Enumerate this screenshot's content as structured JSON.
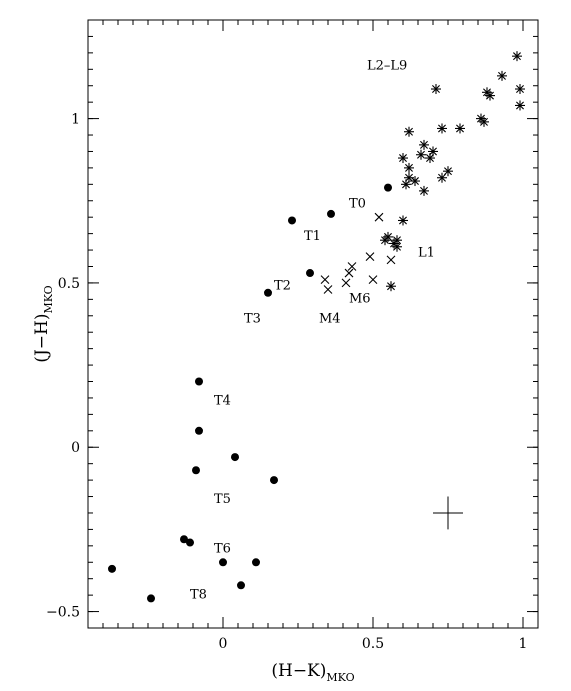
{
  "chart_data": {
    "type": "scatter",
    "xlabel_main": "(H−K)",
    "xlabel_sub": "MKO",
    "ylabel_main": "(J−H)",
    "ylabel_sub": "MKO",
    "xlim": [
      -0.45,
      1.05
    ],
    "ylim": [
      -0.55,
      1.3
    ],
    "x_ticks": [
      0,
      0.5,
      1
    ],
    "x_tick_labels": [
      "0",
      "0.5",
      "1"
    ],
    "y_ticks": [
      -0.5,
      0,
      0.5,
      1
    ],
    "y_tick_labels": [
      "−0.5",
      "0",
      "0.5",
      "1"
    ],
    "grid": false,
    "series": [
      {
        "marker": "filled-circle",
        "points": [
          [
            0.55,
            0.79
          ],
          [
            0.36,
            0.71
          ],
          [
            0.23,
            0.69
          ],
          [
            0.29,
            0.53
          ],
          [
            0.15,
            0.47
          ],
          [
            -0.08,
            0.2
          ],
          [
            -0.08,
            0.05
          ],
          [
            0.04,
            -0.03
          ],
          [
            -0.09,
            -0.07
          ],
          [
            0.17,
            -0.1
          ],
          [
            -0.13,
            -0.28
          ],
          [
            -0.11,
            -0.29
          ],
          [
            0.0,
            -0.35
          ],
          [
            0.11,
            -0.35
          ],
          [
            -0.37,
            -0.37
          ],
          [
            0.06,
            -0.42
          ],
          [
            -0.24,
            -0.46
          ]
        ]
      },
      {
        "marker": "cross",
        "points": [
          [
            0.52,
            0.7
          ],
          [
            0.34,
            0.51
          ],
          [
            0.35,
            0.48
          ],
          [
            0.42,
            0.53
          ],
          [
            0.43,
            0.55
          ],
          [
            0.41,
            0.5
          ],
          [
            0.5,
            0.51
          ],
          [
            0.49,
            0.58
          ],
          [
            0.56,
            0.57
          ]
        ]
      },
      {
        "marker": "asterisk",
        "points": [
          [
            0.98,
            1.19
          ],
          [
            0.93,
            1.13
          ],
          [
            0.71,
            1.09
          ],
          [
            0.88,
            1.08
          ],
          [
            0.99,
            1.09
          ],
          [
            0.89,
            1.07
          ],
          [
            0.99,
            1.04
          ],
          [
            0.86,
            1.0
          ],
          [
            0.87,
            0.99
          ],
          [
            0.62,
            0.96
          ],
          [
            0.73,
            0.97
          ],
          [
            0.79,
            0.97
          ],
          [
            0.67,
            0.92
          ],
          [
            0.66,
            0.89
          ],
          [
            0.7,
            0.9
          ],
          [
            0.6,
            0.88
          ],
          [
            0.69,
            0.88
          ],
          [
            0.62,
            0.85
          ],
          [
            0.75,
            0.84
          ],
          [
            0.73,
            0.82
          ],
          [
            0.62,
            0.82
          ],
          [
            0.64,
            0.81
          ],
          [
            0.61,
            0.8
          ],
          [
            0.67,
            0.78
          ],
          [
            0.6,
            0.69
          ],
          [
            0.55,
            0.64
          ],
          [
            0.54,
            0.63
          ],
          [
            0.58,
            0.63
          ],
          [
            0.57,
            0.62
          ],
          [
            0.58,
            0.61
          ],
          [
            0.56,
            0.49
          ]
        ]
      }
    ],
    "error_bar": {
      "x": 0.75,
      "y": -0.2,
      "xerr": 0.05,
      "yerr": 0.05
    },
    "annotations": [
      {
        "text": "L2–L9",
        "x": 0.48,
        "y": 1.15
      },
      {
        "text": "T0",
        "x": 0.42,
        "y": 0.73
      },
      {
        "text": "T1",
        "x": 0.27,
        "y": 0.63
      },
      {
        "text": "L1",
        "x": 0.65,
        "y": 0.58
      },
      {
        "text": "T2",
        "x": 0.17,
        "y": 0.48
      },
      {
        "text": "M6",
        "x": 0.42,
        "y": 0.44
      },
      {
        "text": "T3",
        "x": 0.07,
        "y": 0.38
      },
      {
        "text": "M4",
        "x": 0.32,
        "y": 0.38
      },
      {
        "text": "T4",
        "x": -0.03,
        "y": 0.13
      },
      {
        "text": "T5",
        "x": -0.03,
        "y": -0.17
      },
      {
        "text": "T6",
        "x": -0.03,
        "y": -0.32
      },
      {
        "text": "T8",
        "x": -0.11,
        "y": -0.46
      }
    ]
  }
}
